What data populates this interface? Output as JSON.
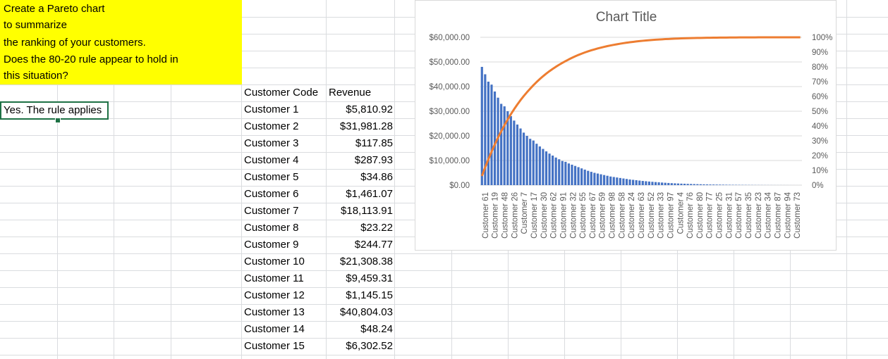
{
  "prompt": {
    "lines": [
      "Create a Pareto chart",
      "to summarize",
      "the ranking of your customers.",
      "Does the 80-20 rule appear to hold in",
      "this situation?"
    ]
  },
  "answer": "Yes. The rule applies",
  "table": {
    "headers": {
      "code": "Customer Code",
      "revenue": "Revenue"
    },
    "rows": [
      {
        "code": "Customer 1",
        "revenue": "$5,810.92"
      },
      {
        "code": "Customer 2",
        "revenue": "$31,981.28"
      },
      {
        "code": "Customer 3",
        "revenue": "$117.85"
      },
      {
        "code": "Customer 4",
        "revenue": "$287.93"
      },
      {
        "code": "Customer 5",
        "revenue": "$34.86"
      },
      {
        "code": "Customer 6",
        "revenue": "$1,461.07"
      },
      {
        "code": "Customer 7",
        "revenue": "$18,113.91"
      },
      {
        "code": "Customer 8",
        "revenue": "$23.22"
      },
      {
        "code": "Customer 9",
        "revenue": "$244.77"
      },
      {
        "code": "Customer 10",
        "revenue": "$21,308.38"
      },
      {
        "code": "Customer 11",
        "revenue": "$9,459.31"
      },
      {
        "code": "Customer 12",
        "revenue": "$1,145.15"
      },
      {
        "code": "Customer 13",
        "revenue": "$40,804.03"
      },
      {
        "code": "Customer 14",
        "revenue": "$48.24"
      },
      {
        "code": "Customer 15",
        "revenue": "$6,302.52"
      }
    ]
  },
  "chart_data": {
    "type": "bar",
    "title": "Chart Title",
    "colors": {
      "bars": "#4472c4",
      "line": "#ed7d31"
    },
    "y_left": {
      "ylim": [
        0,
        60000
      ],
      "ticks": [
        "$0.00",
        "$10,000.00",
        "$20,000.00",
        "$30,000.00",
        "$40,000.00",
        "$50,000.00",
        "$60,000.00"
      ]
    },
    "y_right": {
      "ylim": [
        0,
        100
      ],
      "ticks": [
        "0%",
        "10%",
        "20%",
        "30%",
        "40%",
        "50%",
        "60%",
        "70%",
        "80%",
        "90%",
        "100%"
      ]
    },
    "x_tick_labels": [
      "Customer 61",
      "Customer 19",
      "Customer 48",
      "Customer 26",
      "Customer 7",
      "Customer 17",
      "Customer 30",
      "Customer 62",
      "Customer 91",
      "Customer 32",
      "Customer 55",
      "Customer 67",
      "Customer 59",
      "Customer 98",
      "Customer 58",
      "Customer 24",
      "Customer 63",
      "Customer 52",
      "Customer 33",
      "Customer 97",
      "Customer 4",
      "Customer 76",
      "Customer 80",
      "Customer 77",
      "Customer 25",
      "Customer 31",
      "Customer 57",
      "Customer 35",
      "Customer 23",
      "Customer 34",
      "Customer 87",
      "Customer 94",
      "Customer 73"
    ],
    "category_count": 100,
    "bar_values": [
      48000,
      45000,
      42000,
      40804,
      38000,
      35500,
      33000,
      31981,
      30000,
      28000,
      26200,
      24600,
      23000,
      21308,
      20000,
      18800,
      18114,
      16800,
      15700,
      14700,
      13700,
      12800,
      12000,
      11200,
      10500,
      9800,
      9459,
      8800,
      8300,
      7800,
      7300,
      6800,
      6302,
      5811,
      5400,
      5000,
      4700,
      4400,
      4100,
      3800,
      3500,
      3300,
      3100,
      2900,
      2700,
      2500,
      2300,
      2150,
      2000,
      1850,
      1700,
      1580,
      1461,
      1350,
      1250,
      1145,
      1050,
      960,
      880,
      800,
      730,
      670,
      610,
      560,
      510,
      470,
      430,
      390,
      355,
      320,
      288,
      260,
      245,
      225,
      205,
      185,
      165,
      150,
      135,
      118,
      105,
      95,
      85,
      75,
      65,
      55,
      48,
      42,
      35,
      30,
      25,
      23,
      20,
      17,
      14,
      11,
      8,
      6,
      4,
      2
    ],
    "series": [
      {
        "name": "",
        "type": "bar"
      },
      {
        "name": "",
        "type": "line",
        "axis": "right"
      }
    ]
  }
}
